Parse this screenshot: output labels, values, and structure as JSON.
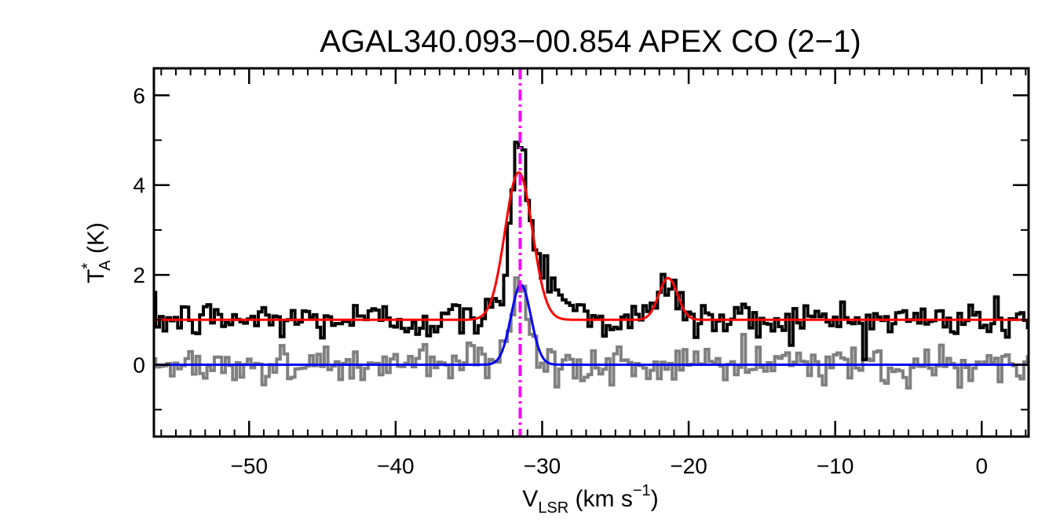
{
  "chart_data": {
    "type": "line",
    "title": "AGAL340.093−00.854  APEX CO (2−1)",
    "xlabel": {
      "main": "V",
      "sub": "LSR",
      "rest": " (km s",
      "sup": "−1",
      "end": ")"
    },
    "ylabel": {
      "main": "T",
      "sup": "*",
      "sub": "A",
      "rest": " (K)"
    },
    "xlim": [
      -56.5,
      3.2
    ],
    "ylim": [
      -1.6,
      6.6
    ],
    "x_ticks": [
      -50,
      -40,
      -30,
      -20,
      -10,
      0
    ],
    "x_tick_labels": [
      "−50",
      "−40",
      "−30",
      "−20",
      "−10",
      "0"
    ],
    "y_ticks": [
      0,
      2,
      4,
      6
    ],
    "y_tick_labels": [
      "0",
      "2",
      "4",
      "6"
    ],
    "grid": false,
    "vline": {
      "x": -31.5,
      "color": "#ff00ff",
      "style": "dash-dot"
    },
    "series": [
      {
        "kind": "observed_spectrum",
        "color": "#000000",
        "offset": 1.0,
        "components": [
          {
            "amp": 3.3,
            "center": -31.6,
            "fwhm": 1.3
          },
          {
            "amp": 1.2,
            "center": -30.3,
            "fwhm": 3.5
          },
          {
            "amp": 0.85,
            "center": -21.4,
            "fwhm": 1.5
          }
        ],
        "noise": 0.22
      },
      {
        "kind": "residual_spectrum",
        "color": "#808080",
        "offset": 0.0,
        "components": [
          {
            "amp": 1.6,
            "center": -31.5,
            "fwhm": 1.2
          }
        ],
        "noise": 0.22
      },
      {
        "kind": "gaussian_fit",
        "color": "#ff0000",
        "offset": 1.0,
        "components": [
          {
            "amp": 3.28,
            "center": -31.6,
            "fwhm": 2.2
          },
          {
            "amp": 0.93,
            "center": -21.4,
            "fwhm": 1.5
          }
        ]
      },
      {
        "kind": "gaussian_fit",
        "color": "#0000ff",
        "offset": 0.0,
        "components": [
          {
            "amp": 1.78,
            "center": -31.45,
            "fwhm": 1.6
          }
        ]
      }
    ]
  }
}
